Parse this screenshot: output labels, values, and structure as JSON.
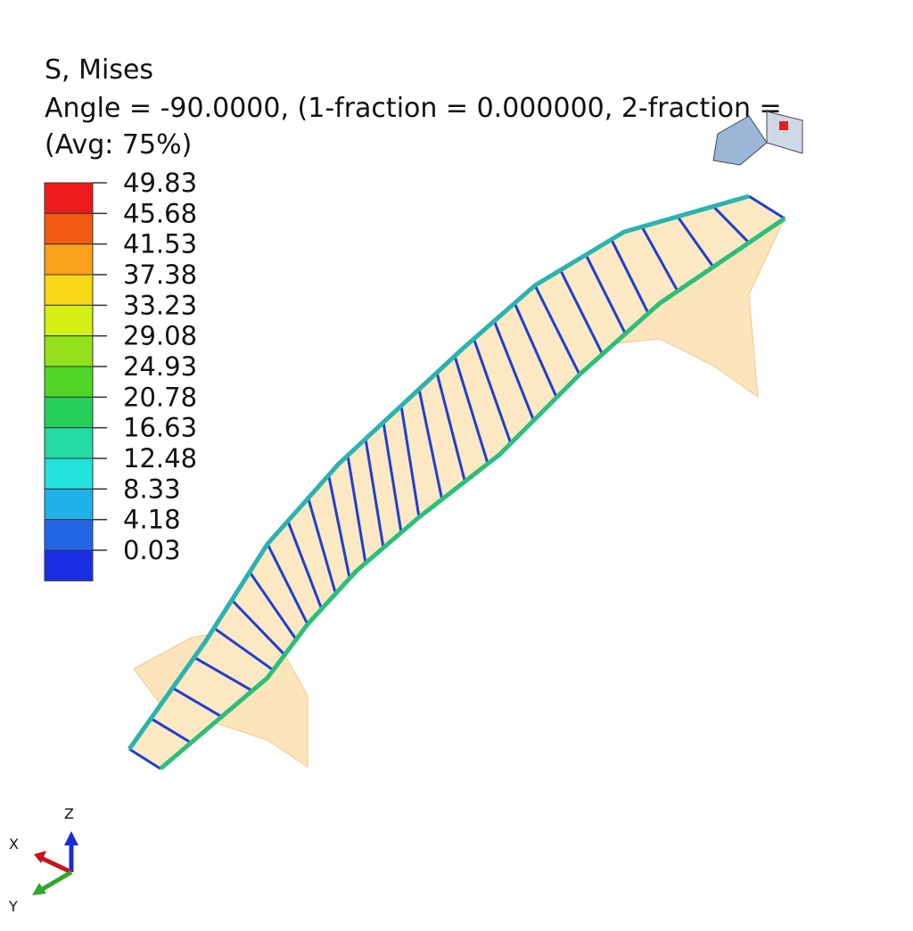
{
  "header": {
    "title": "S, Mises",
    "subtitle": "Angle = -90.0000, (1-fraction = 0.000000, 2-fraction =",
    "note": "(Avg: 75%)"
  },
  "legend": {
    "labels": [
      "49.83",
      "45.68",
      "41.53",
      "37.38",
      "33.23",
      "29.08",
      "24.93",
      "20.78",
      "16.63",
      "12.48",
      "8.33",
      "4.18",
      "0.03"
    ],
    "colors": [
      "#ee1c1c",
      "#f25a12",
      "#f9a11b",
      "#f7d716",
      "#d3ef14",
      "#92e11b",
      "#4fd627",
      "#25cf5a",
      "#24dba2",
      "#21e3dc",
      "#1fb1e8",
      "#2266e6",
      "#1c2ee3"
    ]
  },
  "triad": {
    "z": "Z",
    "x": "X",
    "y": "Y"
  }
}
